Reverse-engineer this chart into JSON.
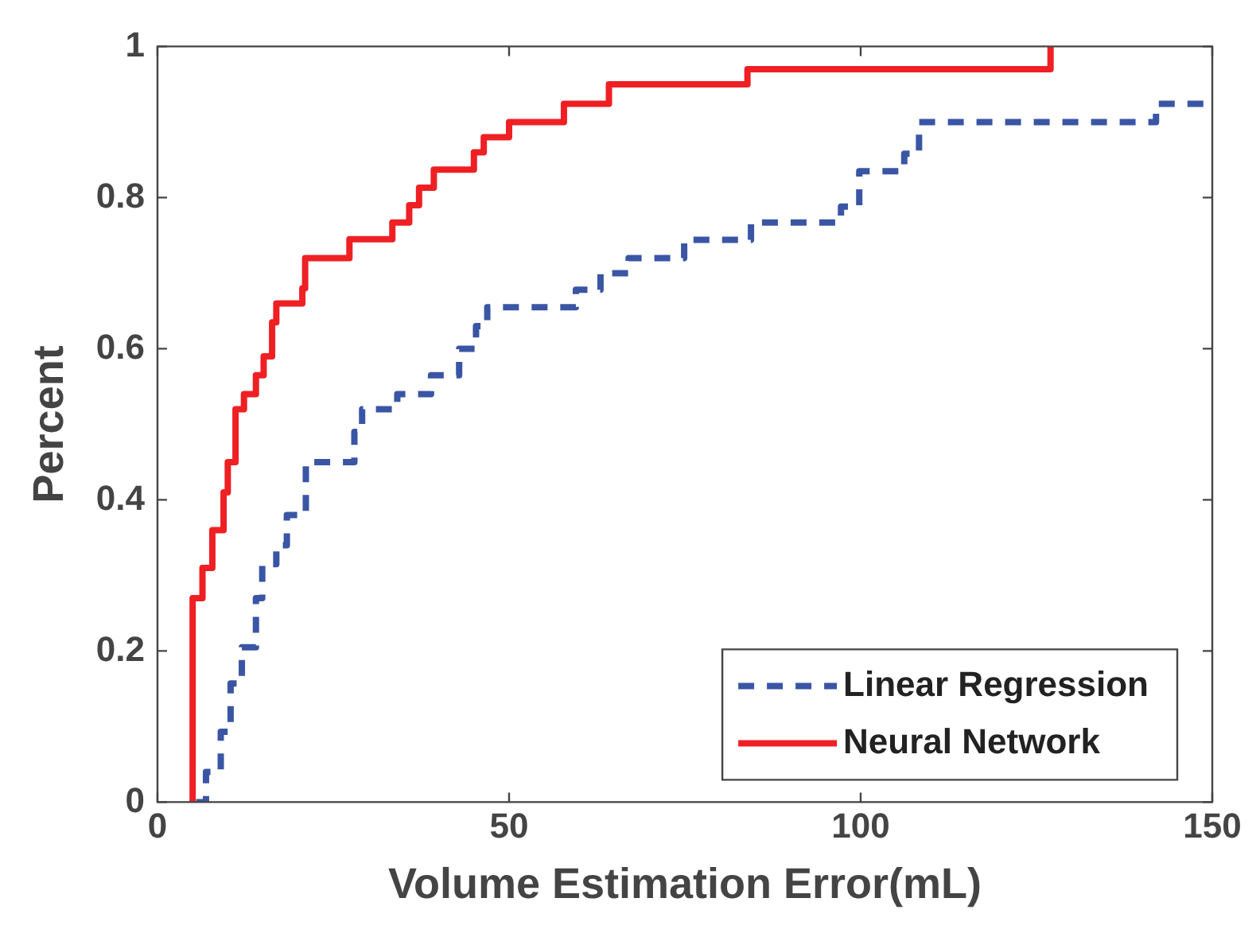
{
  "chart_data": {
    "type": "step",
    "xlabel": "Volume Estimation Error(mL)",
    "ylabel": "Percent",
    "xlim": [
      0,
      150
    ],
    "ylim": [
      0,
      1
    ],
    "xticks": [
      0,
      50,
      100,
      150
    ],
    "yticks": [
      0,
      0.2,
      0.4,
      0.6,
      0.8,
      1
    ],
    "grid": false,
    "legend": "bottom right",
    "series": [
      {
        "name": "Linear Regression",
        "color": "#3a55a4",
        "line_style": "dashed",
        "x": [
          5.5,
          6.9,
          9,
          10.4,
          12,
          14,
          14.9,
          16.9,
          18.4,
          21.1,
          28,
          29.1,
          34.1,
          38.9,
          42.9,
          45.3,
          46.9,
          59.5,
          63,
          67,
          74.9,
          84.4,
          97.2,
          99.8,
          106.2,
          108.3,
          142,
          150
        ],
        "values": [
          0,
          0.04,
          0.093,
          0.157,
          0.205,
          0.27,
          0.315,
          0.34,
          0.38,
          0.45,
          0.49,
          0.52,
          0.54,
          0.565,
          0.6,
          0.63,
          0.655,
          0.678,
          0.7,
          0.72,
          0.744,
          0.767,
          0.788,
          0.835,
          0.858,
          0.9,
          0.924,
          0.924
        ]
      },
      {
        "name": "Neural Network",
        "color": "#ee2024",
        "line_style": "solid",
        "x": [
          5,
          5,
          6.4,
          7.8,
          9.4,
          10,
          11.1,
          12.3,
          14,
          15.1,
          16.3,
          16.9,
          20.6,
          21,
          27.3,
          33.4,
          35.8,
          37.2,
          39.3,
          45,
          46.4,
          50,
          57.8,
          64.2,
          83.9,
          127
        ],
        "values": [
          0,
          0.27,
          0.31,
          0.36,
          0.41,
          0.45,
          0.52,
          0.54,
          0.565,
          0.59,
          0.635,
          0.66,
          0.68,
          0.72,
          0.745,
          0.767,
          0.79,
          0.813,
          0.837,
          0.86,
          0.88,
          0.9,
          0.924,
          0.95,
          0.97,
          1
        ]
      }
    ]
  }
}
